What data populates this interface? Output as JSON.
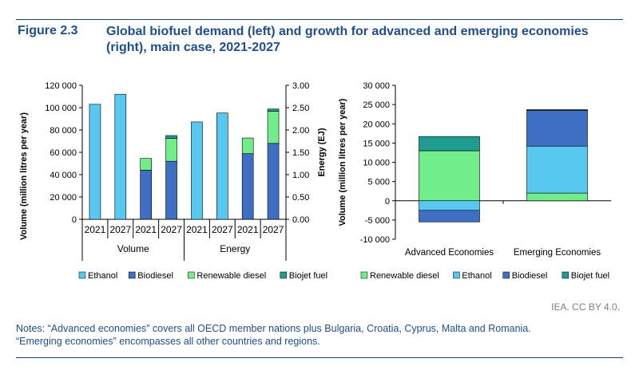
{
  "figure": {
    "number": "Figure 2.3",
    "title": "Global biofuel demand (left) and growth for advanced and emerging economies (right), main case, 2021-2027",
    "credit": "IEA. CC BY 4.0.",
    "notes": [
      "Notes: “Advanced economies” covers all OECD member nations plus Bulgaria, Croatia, Cyprus, Malta and Romania.",
      "“Emerging economies” encompasses all other countries and regions."
    ]
  },
  "colors": {
    "ethanol": "#57c8ef",
    "biodiesel": "#3e6fc4",
    "renewable_diesel": "#71ee8a",
    "biojet_fuel": "#1f9c90",
    "axis": "#000000"
  },
  "chart_data": [
    {
      "type": "bar",
      "stacked": true,
      "dual_axis": true,
      "ylabel": "Volume (million litres per year)",
      "y2label": "Energy (EJ)",
      "ylim": [
        0,
        120000
      ],
      "y2lim": [
        0,
        3
      ],
      "yticks": [
        "0",
        "20 000",
        "40 000",
        "60 000",
        "80 000",
        "100 000",
        "120 000"
      ],
      "y2ticks": [
        "0.00",
        "0.50",
        "1.00",
        "1.50",
        "2.00",
        "2.50",
        "3.00"
      ],
      "groups": [
        {
          "label": "Volume",
          "axis": "left",
          "categories": [
            "2021",
            "2027",
            "2021",
            "2027"
          ]
        },
        {
          "label": "Energy",
          "axis": "right",
          "categories": [
            "2021",
            "2027",
            "2021",
            "2027"
          ]
        }
      ],
      "bars": [
        {
          "group": 0,
          "category": "2021",
          "axis": "left",
          "ethanol": 103000,
          "biodiesel": 0,
          "renewable_diesel": 0,
          "biojet_fuel": 0
        },
        {
          "group": 0,
          "category": "2027",
          "axis": "left",
          "ethanol": 112000,
          "biodiesel": 0,
          "renewable_diesel": 0,
          "biojet_fuel": 0
        },
        {
          "group": 0,
          "category": "2021",
          "axis": "left",
          "ethanol": 0,
          "biodiesel": 44000,
          "renewable_diesel": 10500,
          "biojet_fuel": 0
        },
        {
          "group": 0,
          "category": "2027",
          "axis": "left",
          "ethanol": 0,
          "biodiesel": 52000,
          "renewable_diesel": 20500,
          "biojet_fuel": 2500
        },
        {
          "group": 1,
          "category": "2021",
          "axis": "right",
          "ethanol": 2.18,
          "biodiesel": 0,
          "renewable_diesel": 0,
          "biojet_fuel": 0
        },
        {
          "group": 1,
          "category": "2027",
          "axis": "right",
          "ethanol": 2.38,
          "biodiesel": 0,
          "renewable_diesel": 0,
          "biojet_fuel": 0
        },
        {
          "group": 1,
          "category": "2021",
          "axis": "right",
          "ethanol": 0,
          "biodiesel": 1.47,
          "renewable_diesel": 0.35,
          "biojet_fuel": 0
        },
        {
          "group": 1,
          "category": "2027",
          "axis": "right",
          "ethanol": 0,
          "biodiesel": 1.7,
          "renewable_diesel": 0.72,
          "biojet_fuel": 0.05
        }
      ],
      "legend": {
        "position": "bottom",
        "entries": [
          "Ethanol",
          "Biodiesel",
          "Renewable diesel",
          "Biojet fuel"
        ]
      }
    },
    {
      "type": "bar",
      "stacked": true,
      "ylabel": "Volume (million litres per year)",
      "ylim": [
        -10000,
        30000
      ],
      "yticks": [
        "-10 000",
        "-5 000",
        "0",
        "5 000",
        "10 000",
        "15 000",
        "20 000",
        "25 000",
        "30 000"
      ],
      "categories": [
        "Advanced Economies",
        "Emerging Economies"
      ],
      "series": [
        {
          "name": "Renewable diesel",
          "values": [
            13000,
            2000
          ]
        },
        {
          "name": "Ethanol",
          "values": [
            -2500,
            12200
          ]
        },
        {
          "name": "Biodiesel",
          "values": [
            -3000,
            9300
          ]
        },
        {
          "name": "Biojet fuel",
          "values": [
            3700,
            200
          ]
        }
      ],
      "legend": {
        "position": "bottom",
        "entries": [
          "Renewable diesel",
          "Ethanol",
          "Biodiesel",
          "Biojet fuel"
        ]
      }
    }
  ]
}
